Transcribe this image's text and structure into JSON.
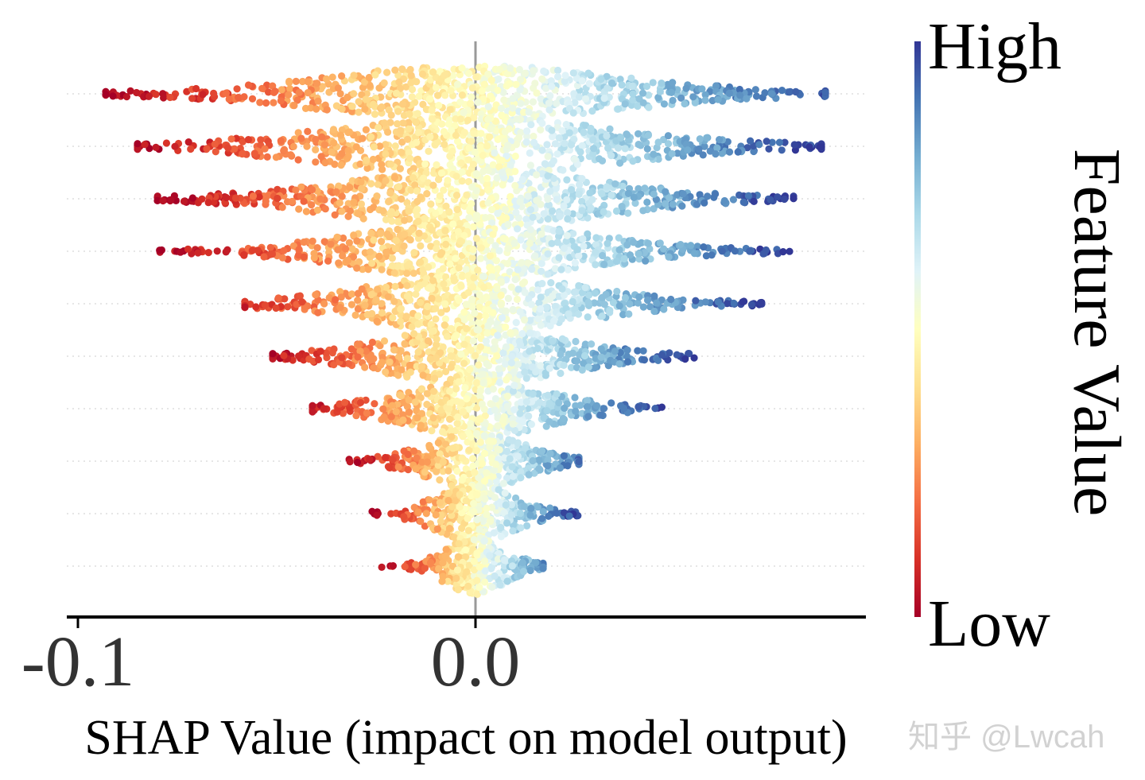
{
  "chart_data": {
    "type": "scatter",
    "subtype": "shap-beeswarm",
    "title": "",
    "xlabel": "SHAP Value (impact on model output)",
    "ylabel": "",
    "xlim": [
      -0.102,
      0.097
    ],
    "xticks": [
      {
        "value": -0.1,
        "label": "-0.1"
      },
      {
        "value": 0.0,
        "label": "0.0"
      }
    ],
    "colorbar": {
      "label": "Feature Value",
      "high_label": "High",
      "low_label": "Low",
      "colormap": [
        "#a50026",
        "#d73027",
        "#f46d43",
        "#fdae61",
        "#fee090",
        "#ffffbf",
        "#e0f3f8",
        "#abd9e9",
        "#74add1",
        "#4575b4",
        "#313695"
      ]
    },
    "features": [
      {
        "name": "",
        "min": -0.093,
        "max": 0.088,
        "spread": 0.045,
        "points": 700
      },
      {
        "name": "",
        "min": -0.085,
        "max": 0.087,
        "spread": 0.045,
        "points": 700
      },
      {
        "name": "",
        "min": -0.08,
        "max": 0.08,
        "spread": 0.04,
        "points": 680
      },
      {
        "name": "",
        "min": -0.08,
        "max": 0.079,
        "spread": 0.036,
        "points": 650
      },
      {
        "name": "",
        "min": -0.058,
        "max": 0.072,
        "spread": 0.033,
        "points": 600
      },
      {
        "name": "",
        "min": -0.051,
        "max": 0.055,
        "spread": 0.027,
        "points": 550
      },
      {
        "name": "",
        "min": -0.041,
        "max": 0.047,
        "spread": 0.022,
        "points": 480
      },
      {
        "name": "",
        "min": -0.032,
        "max": 0.026,
        "spread": 0.015,
        "points": 400
      },
      {
        "name": "",
        "min": -0.026,
        "max": 0.026,
        "spread": 0.012,
        "points": 350
      },
      {
        "name": "",
        "min": -0.024,
        "max": 0.017,
        "spread": 0.009,
        "points": 300
      }
    ],
    "zero_line": 0.0,
    "grid": false,
    "legend": "colorbar-right"
  },
  "watermark": {
    "text": "知乎 @Lwcah"
  }
}
